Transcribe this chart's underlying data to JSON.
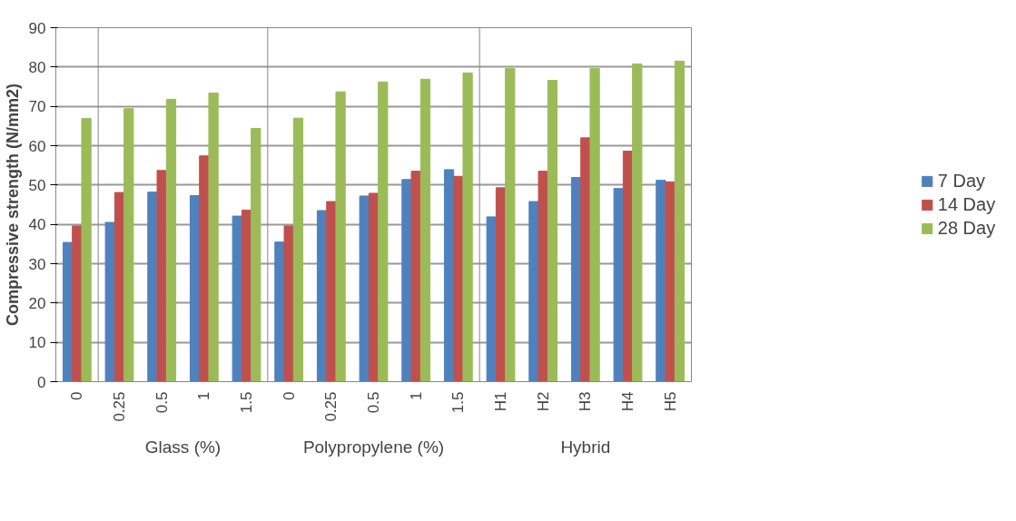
{
  "chart_data": {
    "type": "bar",
    "ylabel": "Compressive strength (N/mm2)",
    "categories": [
      "0",
      "0.25",
      "0.5",
      "1",
      "1.5",
      "0",
      "0.25",
      "0.5",
      "1",
      "1.5",
      "H1",
      "H2",
      "H3",
      "H4",
      "H5"
    ],
    "series": [
      {
        "name": "7 Day",
        "color": "#4f81bd",
        "values": [
          35.4,
          40.5,
          48.2,
          47.3,
          42.1,
          35.5,
          43.5,
          47.2,
          51.4,
          53.9,
          41.9,
          45.8,
          51.9,
          49.1,
          51.2
        ]
      },
      {
        "name": "14 Day",
        "color": "#c0504d",
        "values": [
          39.6,
          48.1,
          53.7,
          57.4,
          43.6,
          39.6,
          45.8,
          47.9,
          53.5,
          52.2,
          49.3,
          53.5,
          62.0,
          58.6,
          50.8
        ]
      },
      {
        "name": "28 Day",
        "color": "#9bbb59",
        "values": [
          66.9,
          69.4,
          71.8,
          73.4,
          64.4,
          67.0,
          73.7,
          76.2,
          76.9,
          78.5,
          79.6,
          76.6,
          79.6,
          80.8,
          81.5
        ]
      }
    ],
    "annotations": [
      "Glass (%)",
      "Polypropylene (%)",
      "Hybrid"
    ],
    "ylim": [
      0,
      90
    ],
    "yticks": [
      0,
      10,
      20,
      30,
      40,
      50,
      60,
      70,
      80,
      90
    ],
    "grid": "y",
    "legend": "right"
  }
}
